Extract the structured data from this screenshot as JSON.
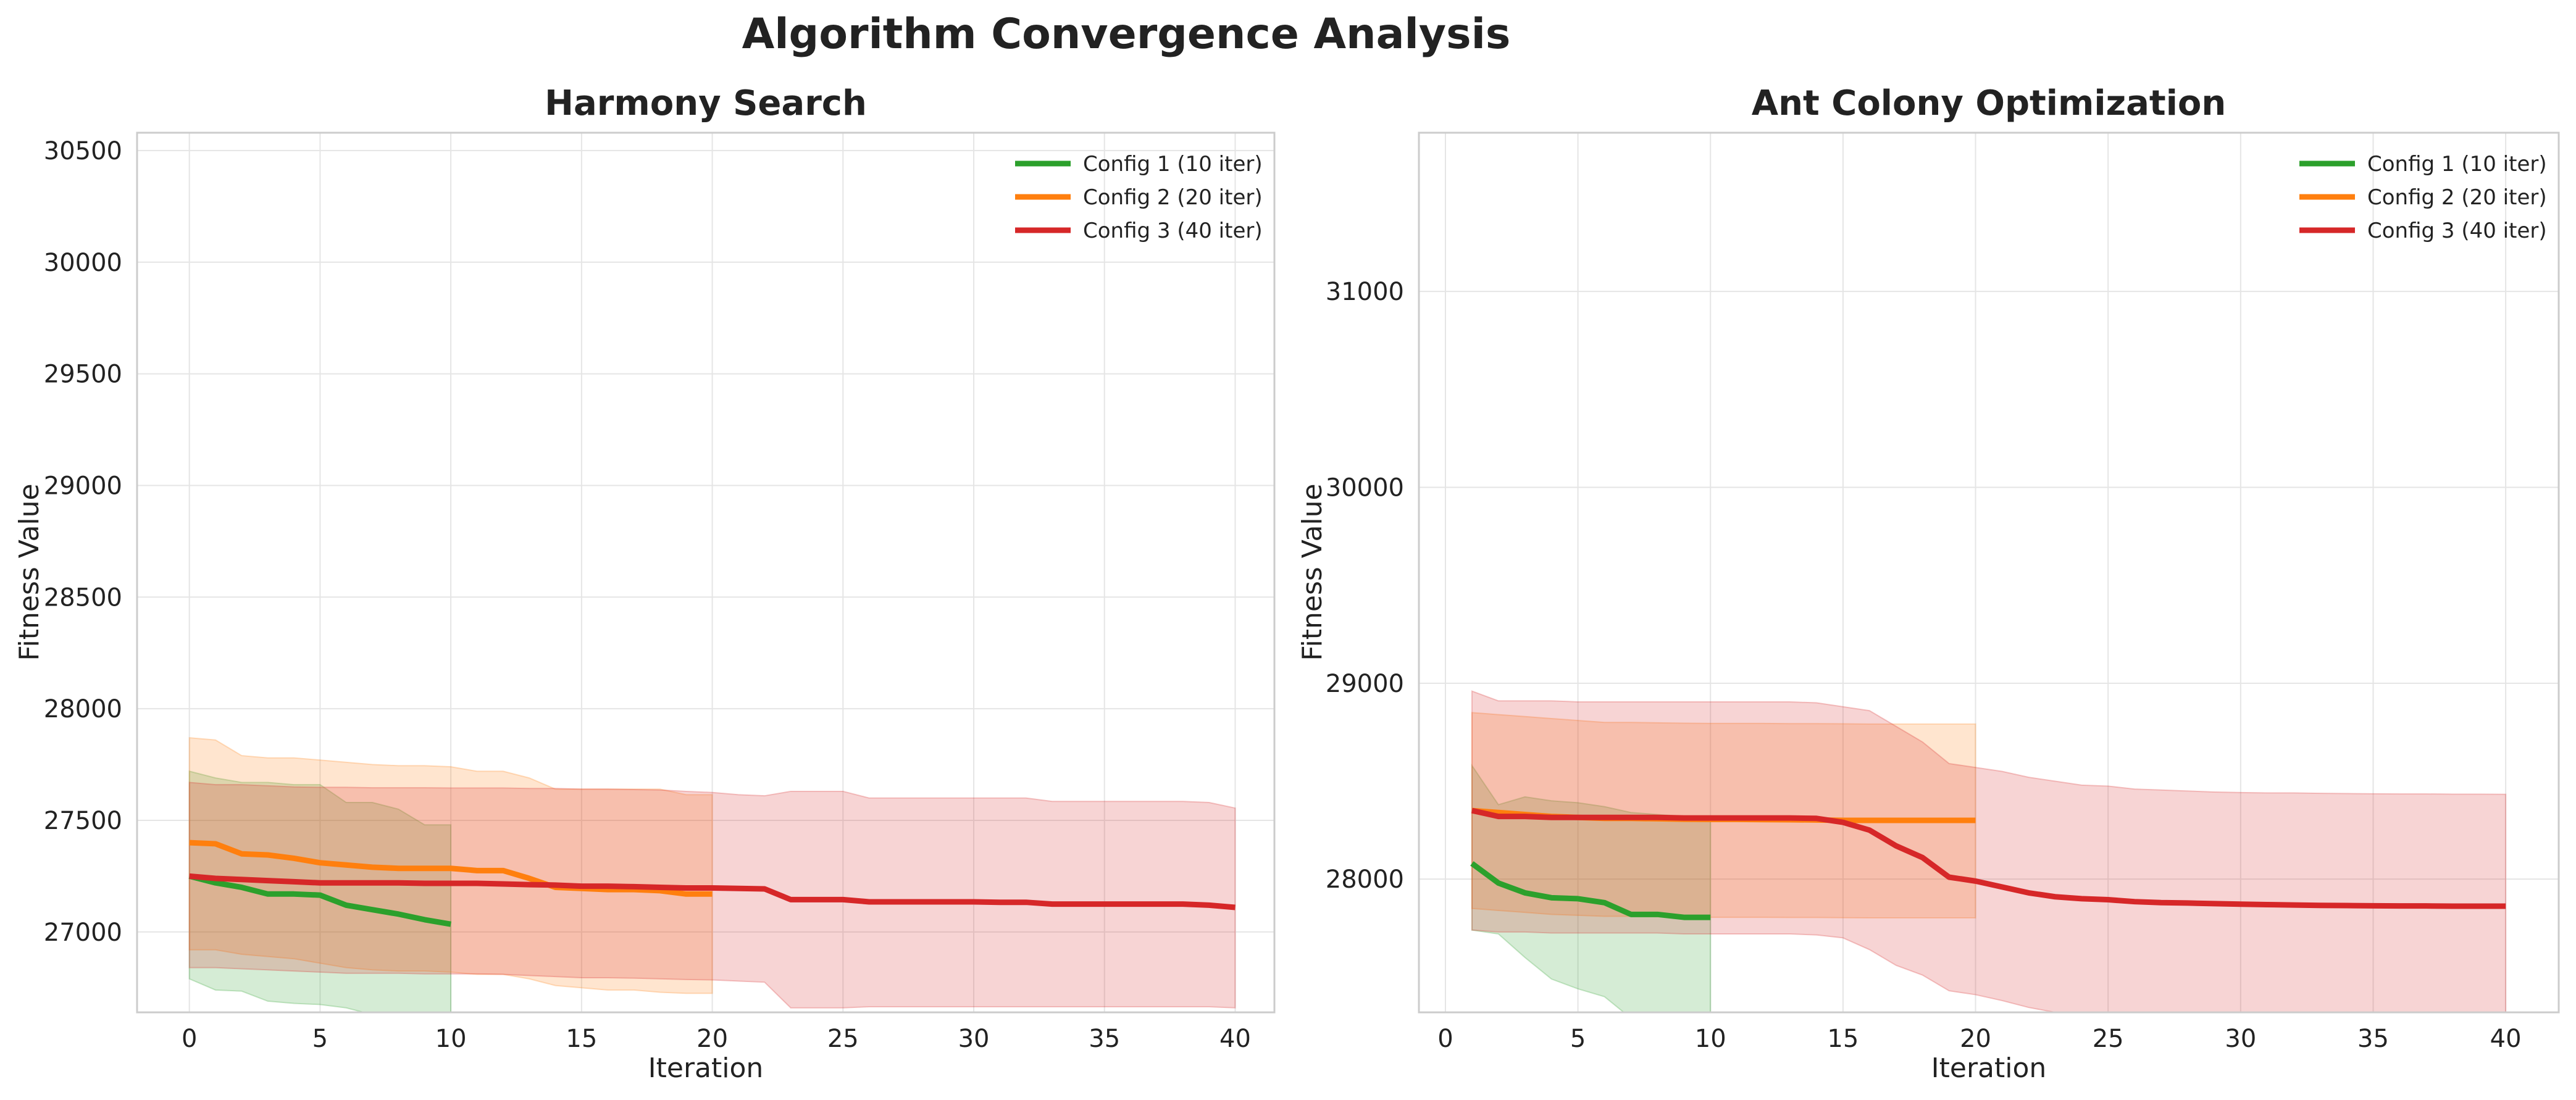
{
  "figure": {
    "title": "Algorithm Convergence Analysis"
  },
  "chart_data": [
    {
      "type": "line",
      "title": "Harmony Search",
      "xlabel": "Iteration",
      "ylabel": "Fitness Value",
      "xlim": [
        -2,
        41.5
      ],
      "ylim": [
        26640,
        30580
      ],
      "xticks": [
        0,
        5,
        10,
        15,
        20,
        25,
        30,
        35,
        40
      ],
      "yticks": [
        27000,
        27500,
        28000,
        28500,
        29000,
        29500,
        30000,
        30500
      ],
      "grid": true,
      "legend": "top-right",
      "series": [
        {
          "name": "Config 1 (10 iter)",
          "color": "#2ca02c",
          "x": [
            0,
            1,
            2,
            3,
            4,
            5,
            6,
            7,
            8,
            9,
            10
          ],
          "y": [
            27250,
            27220,
            27200,
            27170,
            27170,
            27165,
            27120,
            27100,
            27080,
            27055,
            27035
          ],
          "upper": [
            27720,
            27690,
            27670,
            27670,
            27660,
            27660,
            27580,
            27580,
            27550,
            27480,
            27480
          ],
          "lower": [
            26790,
            26740,
            26735,
            26690,
            26680,
            26675,
            26660,
            26630,
            26590,
            26600,
            26590
          ]
        },
        {
          "name": "Config 2 (20 iter)",
          "color": "#ff7f0e",
          "x": [
            0,
            1,
            2,
            3,
            4,
            5,
            6,
            7,
            8,
            9,
            10,
            11,
            12,
            13,
            14,
            15,
            16,
            17,
            18,
            19,
            20
          ],
          "y": [
            27400,
            27395,
            27350,
            27345,
            27330,
            27310,
            27300,
            27290,
            27285,
            27285,
            27285,
            27275,
            27275,
            27240,
            27200,
            27195,
            27190,
            27190,
            27185,
            27170,
            27170
          ],
          "upper": [
            27870,
            27860,
            27790,
            27780,
            27780,
            27770,
            27760,
            27750,
            27745,
            27745,
            27740,
            27720,
            27720,
            27690,
            27640,
            27640,
            27640,
            27640,
            27640,
            27615,
            27615
          ],
          "lower": [
            26920,
            26920,
            26900,
            26890,
            26880,
            26860,
            26840,
            26830,
            26825,
            26825,
            26820,
            26810,
            26810,
            26790,
            26760,
            26750,
            26740,
            26740,
            26730,
            26725,
            26725
          ]
        },
        {
          "name": "Config 3 (40 iter)",
          "color": "#d62728",
          "x": [
            0,
            1,
            2,
            3,
            4,
            5,
            6,
            7,
            8,
            9,
            10,
            11,
            12,
            13,
            14,
            15,
            16,
            17,
            18,
            19,
            20,
            21,
            22,
            23,
            24,
            25,
            26,
            27,
            28,
            29,
            30,
            31,
            32,
            33,
            34,
            35,
            36,
            37,
            38,
            39,
            40
          ],
          "y": [
            27250,
            27240,
            27235,
            27230,
            27225,
            27220,
            27220,
            27220,
            27220,
            27218,
            27218,
            27218,
            27215,
            27212,
            27210,
            27205,
            27205,
            27203,
            27200,
            27197,
            27197,
            27195,
            27193,
            27145,
            27145,
            27145,
            27135,
            27135,
            27135,
            27135,
            27135,
            27133,
            27133,
            27125,
            27125,
            27125,
            27125,
            27125,
            27125,
            27120,
            27110
          ],
          "upper": [
            27670,
            27660,
            27660,
            27655,
            27650,
            27648,
            27648,
            27646,
            27646,
            27646,
            27645,
            27645,
            27645,
            27643,
            27643,
            27640,
            27640,
            27638,
            27636,
            27630,
            27625,
            27615,
            27610,
            27630,
            27630,
            27630,
            27600,
            27600,
            27600,
            27600,
            27600,
            27600,
            27600,
            27585,
            27585,
            27585,
            27585,
            27585,
            27585,
            27580,
            27555
          ],
          "lower": [
            26840,
            26840,
            26835,
            26830,
            26825,
            26820,
            26815,
            26815,
            26815,
            26812,
            26812,
            26812,
            26810,
            26805,
            26800,
            26795,
            26795,
            26793,
            26790,
            26787,
            26785,
            26780,
            26775,
            26660,
            26660,
            26660,
            26665,
            26665,
            26665,
            26665,
            26665,
            26665,
            26665,
            26665,
            26665,
            26665,
            26665,
            26665,
            26665,
            26665,
            26660
          ]
        }
      ]
    },
    {
      "type": "line",
      "title": "Ant Colony Optimization",
      "xlabel": "Iteration",
      "ylabel": "Fitness Value",
      "xlim": [
        -1,
        42
      ],
      "ylim": [
        27320,
        31810
      ],
      "xticks": [
        0,
        5,
        10,
        15,
        20,
        25,
        30,
        35,
        40
      ],
      "yticks": [
        28000,
        29000,
        30000,
        31000
      ],
      "grid": true,
      "legend": "top-right",
      "series": [
        {
          "name": "Config 1 (10 iter)",
          "color": "#2ca02c",
          "x": [
            1,
            2,
            3,
            4,
            5,
            6,
            7,
            8,
            9,
            10
          ],
          "y": [
            28080,
            27980,
            27930,
            27905,
            27900,
            27880,
            27820,
            27820,
            27805,
            27805
          ],
          "upper": [
            28580,
            28380,
            28420,
            28400,
            28390,
            28370,
            28340,
            28330,
            28320,
            28310
          ],
          "lower": [
            27740,
            27720,
            27600,
            27490,
            27440,
            27400,
            27290,
            27250,
            27230,
            27220
          ]
        },
        {
          "name": "Config 2 (20 iter)",
          "color": "#ff7f0e",
          "x": [
            1,
            2,
            3,
            4,
            5,
            6,
            7,
            8,
            9,
            10,
            11,
            12,
            13,
            14,
            15,
            16,
            17,
            18,
            19,
            20
          ],
          "y": [
            28350,
            28340,
            28330,
            28320,
            28315,
            28310,
            28310,
            28308,
            28306,
            28305,
            28305,
            28304,
            28303,
            28302,
            28300,
            28300,
            28300,
            28300,
            28300,
            28300
          ],
          "upper": [
            28850,
            28840,
            28830,
            28820,
            28810,
            28800,
            28800,
            28798,
            28796,
            28795,
            28795,
            28795,
            28794,
            28794,
            28793,
            28792,
            28792,
            28792,
            28792,
            28792
          ],
          "lower": [
            27850,
            27840,
            27830,
            27820,
            27815,
            27810,
            27810,
            27808,
            27806,
            27805,
            27805,
            27805,
            27804,
            27804,
            27803,
            27802,
            27802,
            27802,
            27802,
            27802
          ]
        },
        {
          "name": "Config 3 (40 iter)",
          "color": "#d62728",
          "x": [
            1,
            2,
            3,
            4,
            5,
            6,
            7,
            8,
            9,
            10,
            11,
            12,
            13,
            14,
            15,
            16,
            17,
            18,
            19,
            20,
            21,
            22,
            23,
            24,
            25,
            26,
            27,
            28,
            29,
            30,
            31,
            32,
            33,
            34,
            35,
            36,
            37,
            38,
            39,
            40
          ],
          "y": [
            28350,
            28320,
            28320,
            28315,
            28315,
            28315,
            28315,
            28315,
            28312,
            28312,
            28312,
            28312,
            28312,
            28310,
            28290,
            28250,
            28170,
            28110,
            28010,
            27990,
            27960,
            27930,
            27910,
            27900,
            27895,
            27885,
            27880,
            27878,
            27875,
            27872,
            27870,
            27868,
            27866,
            27865,
            27864,
            27863,
            27863,
            27862,
            27862,
            27862
          ],
          "upper": [
            28960,
            28910,
            28910,
            28910,
            28905,
            28905,
            28905,
            28905,
            28905,
            28905,
            28905,
            28905,
            28905,
            28900,
            28880,
            28860,
            28780,
            28700,
            28590,
            28570,
            28550,
            28520,
            28500,
            28480,
            28475,
            28460,
            28455,
            28450,
            28445,
            28442,
            28440,
            28440,
            28438,
            28437,
            28436,
            28435,
            28435,
            28434,
            28434,
            28433
          ],
          "lower": [
            27740,
            27730,
            27730,
            27725,
            27725,
            27725,
            27725,
            27725,
            27720,
            27720,
            27720,
            27720,
            27720,
            27715,
            27700,
            27640,
            27560,
            27510,
            27430,
            27410,
            27380,
            27345,
            27320,
            27310,
            27300,
            27290,
            27285,
            27280,
            27275,
            27272,
            27270,
            27268,
            27266,
            27264,
            27262,
            27260,
            27260,
            27259,
            27259,
            27258
          ]
        }
      ]
    }
  ]
}
